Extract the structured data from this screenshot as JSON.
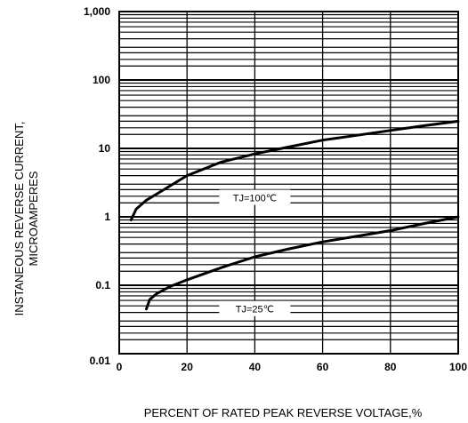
{
  "chart_data": {
    "type": "line",
    "xlabel": "PERCENT OF RATED PEAK REVERSE VOLTAGE,%",
    "ylabel_line1": "INSTANEOUS REVERSE CURRENT,",
    "ylabel_line2": "MICROAMPERES",
    "xlim": [
      0,
      100
    ],
    "ylim": [
      0.01,
      1000
    ],
    "yscale": "log",
    "x_ticks": [
      0,
      20,
      40,
      60,
      80,
      100
    ],
    "x_tick_labels": [
      "0",
      "20",
      "40",
      "60",
      "80",
      "100"
    ],
    "y_ticks": [
      0.01,
      0.1,
      1,
      10,
      100,
      1000
    ],
    "y_tick_labels": [
      "0.01",
      "0.1",
      "1",
      "10",
      "100",
      "1,000"
    ],
    "grid": true,
    "series": [
      {
        "name": "TJ=100°C",
        "label_text": "TJ=100℃",
        "x": [
          3.5,
          5,
          8,
          12,
          20,
          30,
          40,
          50,
          60,
          70,
          80,
          90,
          100
        ],
        "y": [
          0.9,
          1.3,
          1.75,
          2.3,
          4.0,
          6.3,
          8.3,
          10.5,
          13.2,
          15.5,
          18.3,
          21.5,
          25.0
        ]
      },
      {
        "name": "TJ=25°C",
        "label_text": "TJ=25℃",
        "x": [
          8,
          9,
          11,
          15,
          20,
          30,
          40,
          50,
          60,
          70,
          80,
          90,
          100
        ],
        "y": [
          0.045,
          0.062,
          0.075,
          0.096,
          0.12,
          0.18,
          0.26,
          0.34,
          0.43,
          0.52,
          0.63,
          0.8,
          1.0
        ]
      }
    ]
  }
}
